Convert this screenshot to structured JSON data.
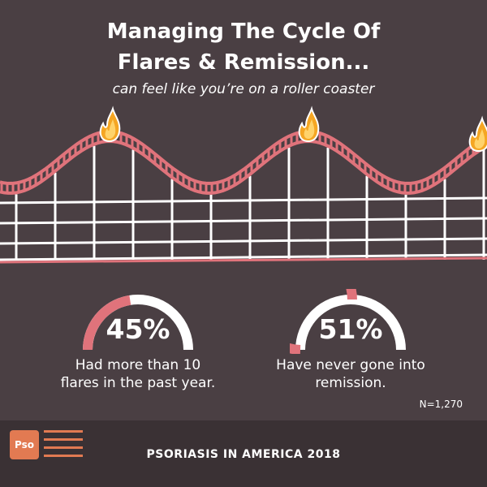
{
  "header": {
    "title_line1": "Managing The Cycle Of",
    "title_line2": "Flares & Remission...",
    "subtitle": "can feel like you’re on a roller coaster"
  },
  "illustration": {
    "icon": "roller-coaster-icon",
    "flame_icon": "flame-icon",
    "track_color": "#e0737b",
    "rail_color": "#ffffff",
    "flame_color": "#f5a623"
  },
  "stats": [
    {
      "value": "45%",
      "percent": 45,
      "label_line1": "Had more than 10",
      "label_line2": "flares in the past year."
    },
    {
      "value": "51%",
      "percent": 51,
      "label_line1": "Have never gone into",
      "label_line2": "remission."
    }
  ],
  "sample_size": "N=1,270",
  "footer": {
    "logo_text": "Pso",
    "title": "PSORIASIS IN AMERICA 2018",
    "accent": "#e27a52"
  },
  "colors": {
    "background": "#4a3f43",
    "arc_accent": "#e0737b",
    "arc_base": "#ffffff"
  }
}
